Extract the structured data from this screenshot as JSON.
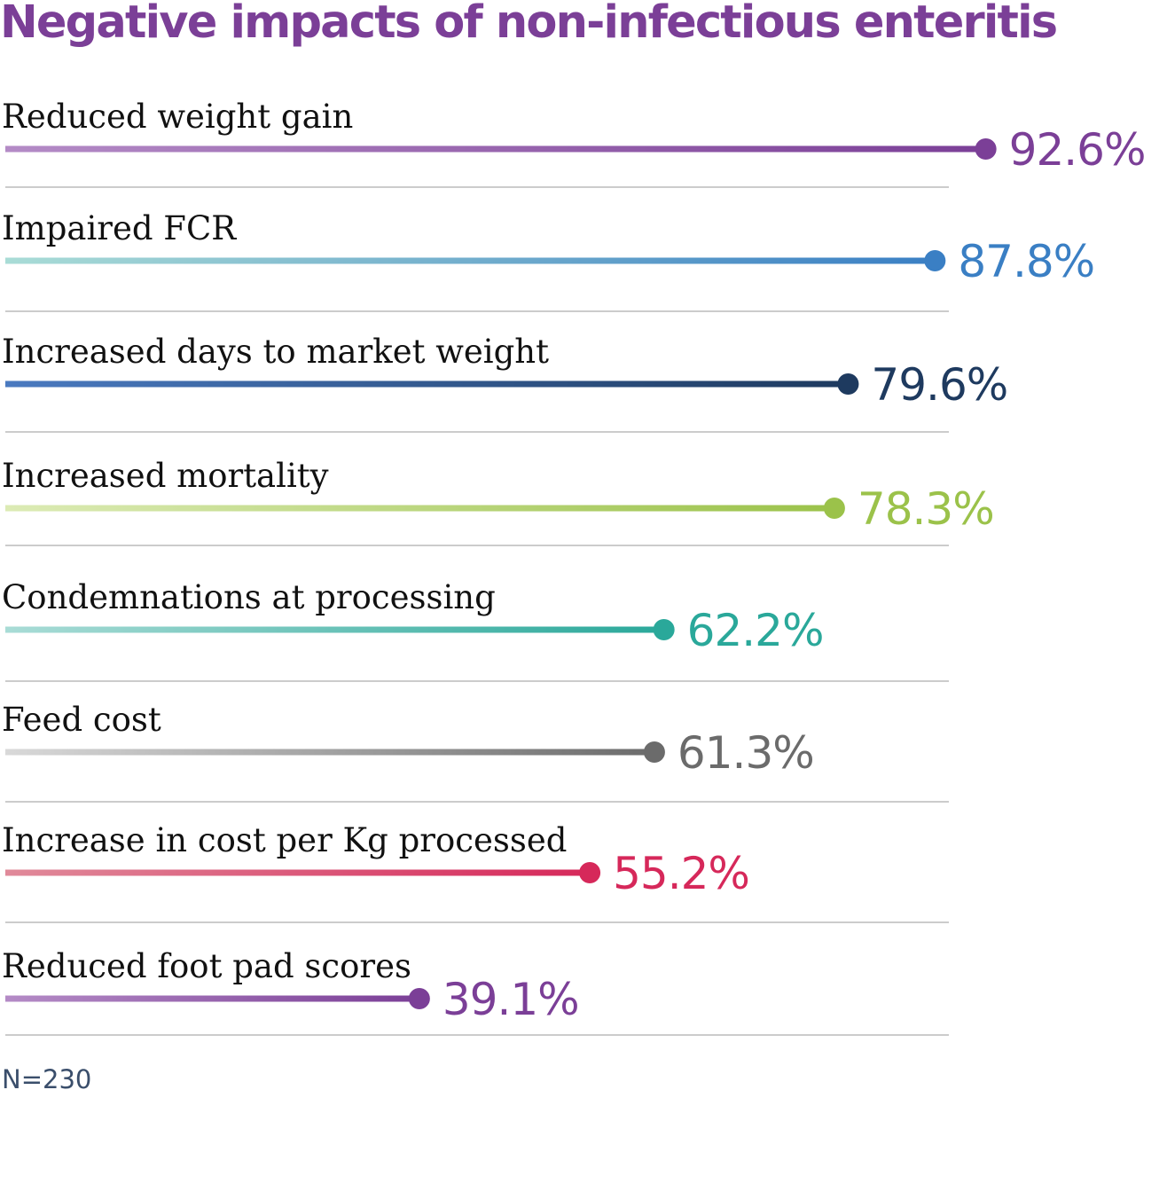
{
  "chart_data": {
    "type": "bar",
    "title": "Negative impacts of non-infectious enteritis",
    "categories": [
      "Reduced weight gain",
      "Impaired FCR",
      "Increased days to market weight",
      "Increased mortality",
      "Condemnations at processing",
      "Feed cost",
      "Increase in cost per Kg processed",
      "Reduced foot pad scores"
    ],
    "values": [
      92.6,
      87.8,
      79.6,
      78.3,
      62.2,
      61.3,
      55.2,
      39.1
    ],
    "value_labels": [
      "92.6%",
      "87.8%",
      "79.6%",
      "78.3%",
      "62.2%",
      "61.3%",
      "55.2%",
      "39.1%"
    ],
    "xlim": [
      0,
      100
    ],
    "colors": [
      {
        "start": "#b48bc6",
        "end": "#7b3f97"
      },
      {
        "start": "#a9dcd6",
        "end": "#3a7fc4"
      },
      {
        "start": "#4a7ac0",
        "end": "#1e3a5f"
      },
      {
        "start": "#dcebb5",
        "end": "#9bc24a"
      },
      {
        "start": "#a9dcd6",
        "end": "#2aa89a"
      },
      {
        "start": "#d9d9d9",
        "end": "#6b6b6b"
      },
      {
        "start": "#e08a9a",
        "end": "#d6285a"
      },
      {
        "start": "#b48bc6",
        "end": "#7b3f97"
      }
    ],
    "value_label_colors": [
      "#7b3f97",
      "#3a7fc4",
      "#1e3a5f",
      "#9bc24a",
      "#2aa89a",
      "#6b6b6b",
      "#d6285a",
      "#7b3f97"
    ],
    "separator_color": "#cccccc",
    "note": "N=230"
  }
}
